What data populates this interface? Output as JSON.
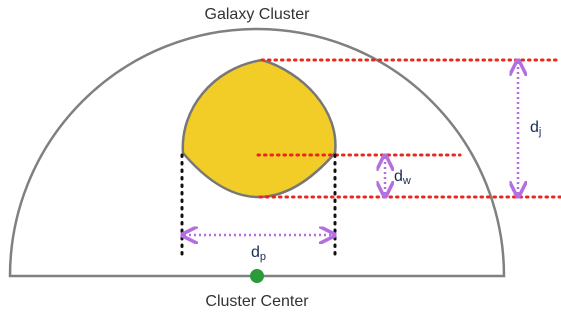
{
  "title": "Galaxy Cluster",
  "center_label": "Cluster Center",
  "dimensions": [
    {
      "main": "d",
      "sub": "j"
    },
    {
      "main": "d",
      "sub": "w"
    },
    {
      "main": "d",
      "sub": "p"
    }
  ]
}
